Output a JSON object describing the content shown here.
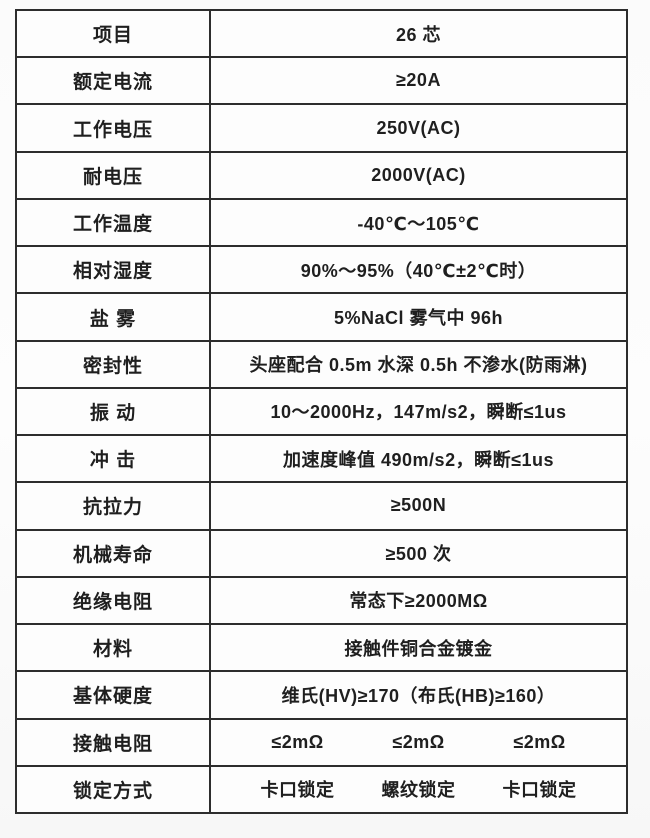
{
  "table": {
    "name": "connector-spec-table",
    "columns": {
      "label_header": "项目",
      "value_header": "26 芯"
    },
    "rows": [
      {
        "label": "项目",
        "value": "26 芯"
      },
      {
        "label": "额定电流",
        "value": "≥20A"
      },
      {
        "label": "工作电压",
        "value": "250V(AC)"
      },
      {
        "label": "耐电压",
        "value": "2000V(AC)"
      },
      {
        "label": "工作温度",
        "value": "-40℃～105℃"
      },
      {
        "label": "相对湿度",
        "value": "90%～95%（40℃±2℃时）"
      },
      {
        "label": "盐 雾",
        "value": "5%NaCl 雾气中 96h"
      },
      {
        "label": "密封性",
        "value": "头座配合 0.5m 水深 0.5h 不渗水(防雨淋)"
      },
      {
        "label": "振 动",
        "value": "10～2000Hz，147m/s2，瞬断≤1us"
      },
      {
        "label": "冲 击",
        "value": "加速度峰值 490m/s2，瞬断≤1us"
      },
      {
        "label": "抗拉力",
        "value": "≥500N"
      },
      {
        "label": "机械寿命",
        "value": "≥500 次"
      },
      {
        "label": "绝缘电阻",
        "value": "常态下≥2000MΩ"
      },
      {
        "label": "材料",
        "value": "接触件铜合金镀金"
      },
      {
        "label": "基体硬度",
        "value": "维氏(HV)≥170（布氏(HB)≥160）"
      },
      {
        "label": "接触电阻",
        "values": [
          "≤2mΩ",
          "≤2mΩ",
          "≤2mΩ"
        ]
      },
      {
        "label": "锁定方式",
        "values": [
          "卡口锁定",
          "螺纹锁定",
          "卡口锁定"
        ]
      }
    ],
    "colors": {
      "border": "#2d2d2d",
      "background": "#fdfdfd",
      "text": "#1f1f1f"
    }
  }
}
